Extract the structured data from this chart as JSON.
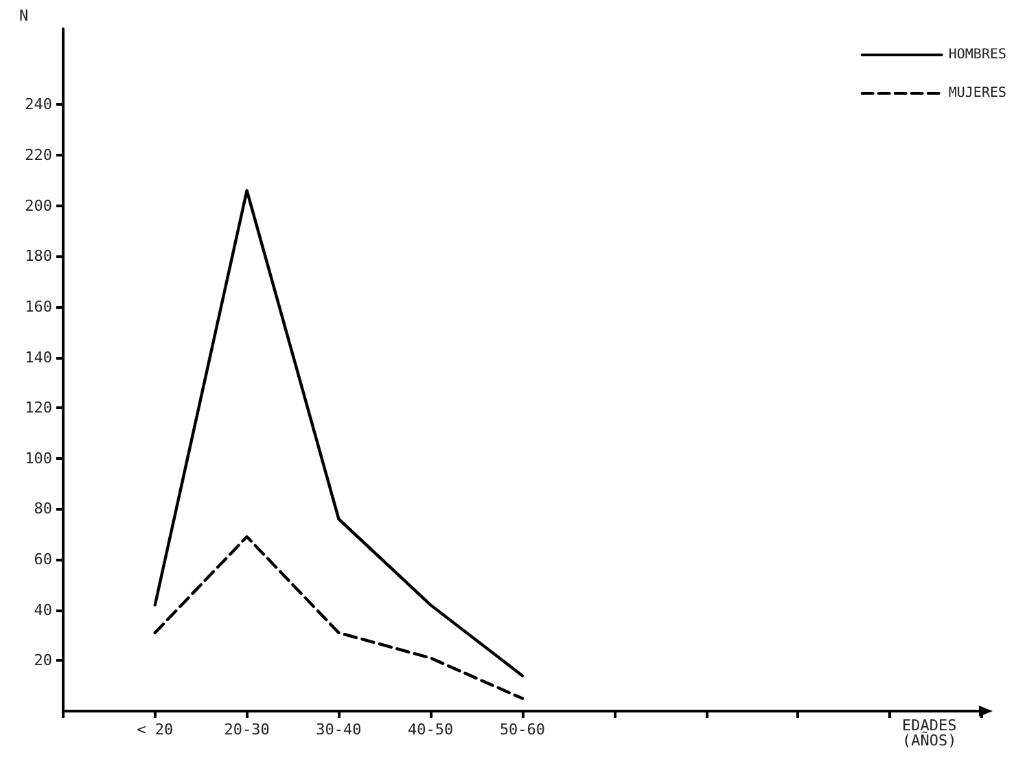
{
  "chart_data": {
    "type": "line",
    "annotations": [
      "EDADES (AÑOS)"
    ],
    "ylabel": "N",
    "categories": [
      "< 20",
      "20-30",
      "30-40",
      "40-50",
      "50-60"
    ],
    "series": [
      {
        "name": "HOMBRES",
        "color": "#000000",
        "line_style": "solid",
        "values": [
          42,
          206,
          76,
          42,
          14
        ]
      },
      {
        "name": "MUJERES",
        "color": "#000000",
        "line_style": "dashed",
        "values": [
          31,
          69,
          31,
          21,
          5
        ]
      }
    ],
    "ylim": [
      0,
      270
    ],
    "yticks": [
      20,
      40,
      60,
      80,
      100,
      120,
      140,
      160,
      180,
      200,
      220,
      240
    ],
    "grid": false,
    "legend": "top right",
    "marker": "none"
  }
}
